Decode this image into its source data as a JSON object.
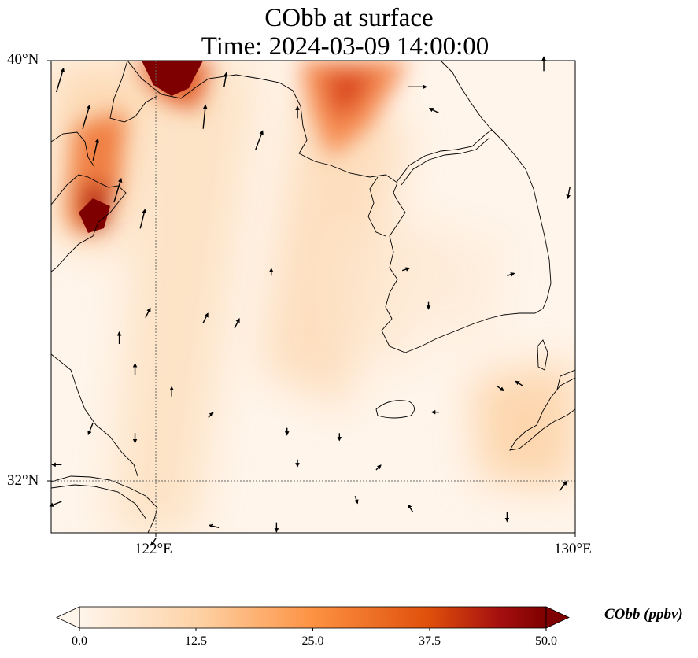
{
  "title": {
    "line1": "CObb at surface",
    "line2": "Time: 2024-03-09 14:00:00"
  },
  "axes": {
    "lat_labels": [
      "40°N",
      "32°N"
    ],
    "lon_labels": [
      "122°E",
      "130°E"
    ],
    "lat_range": [
      31,
      40
    ],
    "lon_range": [
      120,
      130
    ],
    "gridlines": {
      "lat": [
        32
      ],
      "lon": [
        122
      ]
    }
  },
  "field": {
    "variable": "CObb",
    "units": "ppbv",
    "plume_cores": [
      {
        "name": "north-plume",
        "lon": 122.7,
        "lat": 39.8,
        "value": 55
      },
      {
        "name": "northeast-plume",
        "lon": 125.5,
        "lat": 39.4,
        "value": 35
      },
      {
        "name": "shandong-plume",
        "lon": 120.8,
        "lat": 37.0,
        "value": 55
      }
    ]
  },
  "colorbar": {
    "label": "CObb (ppbv)",
    "ticks": [
      "0.0",
      "12.5",
      "25.0",
      "37.5",
      "50.0"
    ],
    "range": [
      0,
      50
    ],
    "colors": [
      "#fff5eb",
      "#fdd3a7",
      "#fd9243",
      "#df4f0b",
      "#7f0000"
    ]
  },
  "wind_vectors": [
    [
      120.1,
      39.4,
      0.3,
      1.0
    ],
    [
      120.6,
      38.7,
      0.3,
      1.0
    ],
    [
      120.8,
      38.1,
      0.2,
      0.9
    ],
    [
      121.2,
      37.3,
      0.3,
      1.0
    ],
    [
      121.7,
      36.8,
      0.2,
      0.8
    ],
    [
      122.9,
      38.7,
      0.1,
      1.0
    ],
    [
      123.9,
      38.3,
      0.3,
      0.8
    ],
    [
      123.3,
      39.5,
      0.1,
      0.6
    ],
    [
      124.7,
      38.9,
      0.0,
      0.5
    ],
    [
      126.8,
      39.5,
      0.8,
      0.0
    ],
    [
      127.4,
      39.0,
      -0.4,
      0.2
    ],
    [
      129.4,
      39.8,
      0.0,
      0.6
    ],
    [
      121.8,
      35.1,
      0.2,
      0.4
    ],
    [
      122.9,
      35.0,
      0.2,
      0.4
    ],
    [
      123.5,
      34.9,
      0.2,
      0.4
    ],
    [
      121.3,
      34.6,
      0.0,
      0.5
    ],
    [
      121.6,
      34.0,
      0.0,
      0.5
    ],
    [
      122.3,
      33.6,
      0.0,
      0.4
    ],
    [
      120.8,
      33.1,
      -0.2,
      -0.5
    ],
    [
      121.6,
      32.9,
      0.0,
      -0.4
    ],
    [
      123.0,
      33.2,
      0.2,
      0.2
    ],
    [
      125.5,
      32.9,
      0.0,
      -0.3
    ],
    [
      124.7,
      32.4,
      0.0,
      -0.3
    ],
    [
      126.2,
      32.2,
      0.2,
      0.2
    ],
    [
      125.8,
      31.7,
      0.1,
      -0.3
    ],
    [
      126.9,
      31.4,
      -0.2,
      0.3
    ],
    [
      128.7,
      31.4,
      0.0,
      -0.4
    ],
    [
      129.7,
      31.8,
      0.3,
      0.4
    ],
    [
      124.3,
      31.2,
      0.0,
      -0.4
    ],
    [
      123.2,
      31.1,
      -0.4,
      0.1
    ],
    [
      122.0,
      30.9,
      -0.2,
      -0.3
    ],
    [
      120.2,
      31.6,
      -0.5,
      -0.2
    ],
    [
      120.2,
      32.3,
      -0.4,
      0.0
    ],
    [
      127.4,
      33.3,
      -0.3,
      0.0
    ],
    [
      128.5,
      33.8,
      0.3,
      -0.2
    ],
    [
      129.0,
      33.8,
      -0.3,
      0.2
    ],
    [
      124.2,
      35.9,
      0.0,
      0.3
    ],
    [
      126.7,
      36.0,
      0.3,
      0.1
    ],
    [
      127.2,
      35.4,
      0.0,
      -0.3
    ],
    [
      128.7,
      35.9,
      0.3,
      0.1
    ],
    [
      129.9,
      37.6,
      -0.1,
      -0.5
    ],
    [
      124.5,
      33.0,
      0.0,
      -0.3
    ]
  ]
}
